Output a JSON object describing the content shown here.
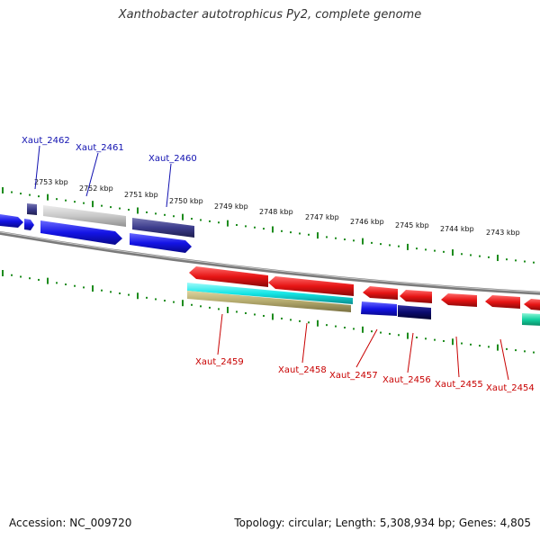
{
  "title": "Xanthobacter autotrophicus Py2, complete genome",
  "footer": {
    "accession": "Accession: NC_009720",
    "summary": "Topology: circular; Length: 5,308,934 bp; Genes: 4,805"
  },
  "scale_labels": [
    "2753 kbp",
    "2752 kbp",
    "2751 kbp",
    "2750 kbp",
    "2749 kbp",
    "2748 kbp",
    "2747 kbp",
    "2746 kbp",
    "2745 kbp",
    "2744 kbp",
    "2743 kbp"
  ],
  "top_genes": [
    "Xaut_2462",
    "Xaut_2461",
    "Xaut_2460"
  ],
  "bottom_genes": [
    "Xaut_2459",
    "Xaut_2458",
    "Xaut_2457",
    "Xaut_2456",
    "Xaut_2455",
    "Xaut_2454"
  ],
  "colors": {
    "forward_strand": "#1414e6",
    "forward_dark": "#3c3c8c",
    "reverse_strand": "#e61414",
    "navy": "#0a0a6e",
    "cyan": "#14e6e6",
    "tan": "#b4aa6e",
    "teal": "#14d2a0",
    "gray_feature": "#c8c8c8",
    "backbone": "#808080",
    "tick_green": "#1e8c1e",
    "label_top": "#1010b0",
    "label_bottom": "#c80000"
  }
}
